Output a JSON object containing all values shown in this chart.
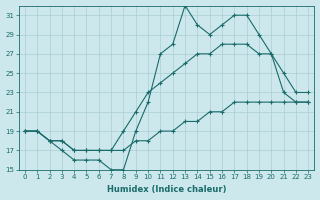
{
  "xlabel": "Humidex (Indice chaleur)",
  "background_color": "#cce8ec",
  "grid_color": "#aacdd4",
  "line_color": "#1a6b6b",
  "xlim": [
    -0.5,
    23.5
  ],
  "ylim": [
    15,
    32
  ],
  "xticks": [
    0,
    1,
    2,
    3,
    4,
    5,
    6,
    7,
    8,
    9,
    10,
    11,
    12,
    13,
    14,
    15,
    16,
    17,
    18,
    19,
    20,
    21,
    22,
    23
  ],
  "yticks": [
    15,
    17,
    19,
    21,
    23,
    25,
    27,
    29,
    31
  ],
  "line1_x": [
    0,
    1,
    2,
    3,
    4,
    5,
    6,
    7,
    8,
    9,
    10,
    11,
    12,
    13,
    14,
    15,
    16,
    17,
    18,
    19,
    20,
    21,
    22,
    23
  ],
  "line1_y": [
    19,
    19,
    18,
    17,
    16,
    16,
    16,
    15,
    15,
    19,
    22,
    27,
    28,
    32,
    30,
    29,
    30,
    31,
    31,
    29,
    27,
    25,
    23,
    23
  ],
  "line2_x": [
    0,
    1,
    2,
    3,
    4,
    5,
    6,
    7,
    8,
    9,
    10,
    11,
    12,
    13,
    14,
    15,
    16,
    17,
    18,
    19,
    20,
    21,
    22,
    23
  ],
  "line2_y": [
    19,
    19,
    18,
    18,
    17,
    17,
    17,
    17,
    19,
    21,
    23,
    24,
    25,
    26,
    27,
    27,
    28,
    28,
    28,
    27,
    27,
    23,
    22,
    22
  ],
  "line3_x": [
    0,
    1,
    2,
    3,
    4,
    5,
    6,
    7,
    8,
    9,
    10,
    11,
    12,
    13,
    14,
    15,
    16,
    17,
    18,
    19,
    20,
    21,
    22,
    23
  ],
  "line3_y": [
    19,
    19,
    18,
    18,
    17,
    17,
    17,
    17,
    17,
    18,
    18,
    19,
    19,
    20,
    20,
    21,
    21,
    22,
    22,
    22,
    22,
    22,
    22,
    22
  ],
  "marker_size": 3,
  "line_width": 0.8,
  "tick_fontsize": 5,
  "xlabel_fontsize": 6
}
